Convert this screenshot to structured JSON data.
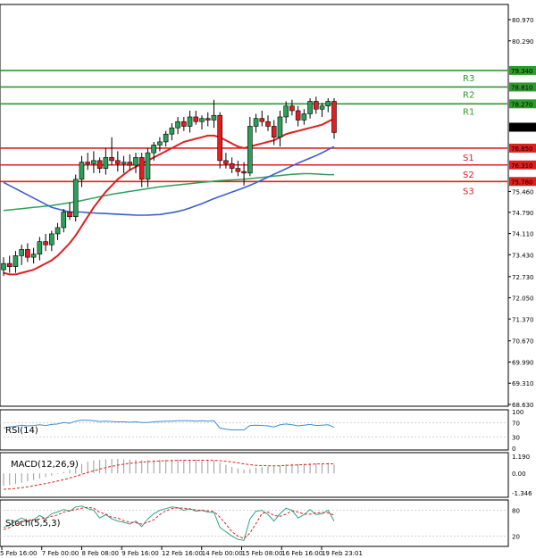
{
  "chart_data": {
    "type": "candlestick",
    "instrument_note": "",
    "price_axis": {
      "ticks": [
        "80.970",
        "80.290",
        "79.340",
        "78.810",
        "78.270",
        "77.520",
        "76.850",
        "76.310",
        "75.780",
        "75.460",
        "74.790",
        "74.110",
        "73.430",
        "72.730",
        "72.050",
        "71.370",
        "70.670",
        "69.990",
        "69.310",
        "68.630"
      ],
      "range": [
        68.63,
        81.45
      ]
    },
    "time_axis": [
      "5 Feb 16:00",
      "7 Feb 00:00",
      "8 Feb 08:00",
      "9 Feb 16:00",
      "12 Feb 16:00",
      "14 Feb 00:00",
      "15 Feb 08:00",
      "16 Feb 16:00",
      "19 Feb 23:01"
    ],
    "levels": [
      {
        "name": "R3",
        "value": 79.34,
        "value_text": "79.340",
        "color": "#2e9a2e"
      },
      {
        "name": "R2",
        "value": 78.81,
        "value_text": "78.810",
        "color": "#2e9a2e"
      },
      {
        "name": "R1",
        "value": 78.27,
        "value_text": "78.270",
        "color": "#2e9a2e"
      },
      {
        "name": "S1",
        "value": 76.85,
        "value_text": "76.850",
        "color": "#e02020"
      },
      {
        "name": "S2",
        "value": 76.31,
        "value_text": "76.310",
        "color": "#e02020"
      },
      {
        "name": "S3",
        "value": 75.78,
        "value_text": "75.780",
        "color": "#e02020"
      }
    ],
    "current_price": {
      "value": 77.52,
      "text": "77.520"
    },
    "candles": [
      [
        72.95,
        73.35,
        72.75,
        73.15
      ],
      [
        73.15,
        73.4,
        72.85,
        73.05
      ],
      [
        73.05,
        73.55,
        72.85,
        73.4
      ],
      [
        73.4,
        73.75,
        73.1,
        73.6
      ],
      [
        73.6,
        73.8,
        73.2,
        73.35
      ],
      [
        73.35,
        73.65,
        73.15,
        73.45
      ],
      [
        73.45,
        74.0,
        73.25,
        73.85
      ],
      [
        73.85,
        74.1,
        73.55,
        73.75
      ],
      [
        73.75,
        74.2,
        73.55,
        74.1
      ],
      [
        74.1,
        74.45,
        73.9,
        74.3
      ],
      [
        74.3,
        74.9,
        74.15,
        74.8
      ],
      [
        74.8,
        75.1,
        74.55,
        74.65
      ],
      [
        74.65,
        76.0,
        74.5,
        75.85
      ],
      [
        75.85,
        76.6,
        75.6,
        76.4
      ],
      [
        76.4,
        76.7,
        76.15,
        76.35
      ],
      [
        76.35,
        76.75,
        76.05,
        76.45
      ],
      [
        76.45,
        76.55,
        76.05,
        76.2
      ],
      [
        76.2,
        76.85,
        76.0,
        76.55
      ],
      [
        76.55,
        77.2,
        76.3,
        76.45
      ],
      [
        76.45,
        76.75,
        76.1,
        76.35
      ],
      [
        76.35,
        76.6,
        76.05,
        76.4
      ],
      [
        76.4,
        76.65,
        76.15,
        76.3
      ],
      [
        76.3,
        76.7,
        76.05,
        76.55
      ],
      [
        76.55,
        76.7,
        75.6,
        75.85
      ],
      [
        75.85,
        76.85,
        75.6,
        76.7
      ],
      [
        76.7,
        77.05,
        76.45,
        76.95
      ],
      [
        76.95,
        77.2,
        76.75,
        77.05
      ],
      [
        77.05,
        77.4,
        76.9,
        77.3
      ],
      [
        77.3,
        77.65,
        77.1,
        77.5
      ],
      [
        77.5,
        77.85,
        77.3,
        77.7
      ],
      [
        77.7,
        77.85,
        77.4,
        77.55
      ],
      [
        77.55,
        78.05,
        77.35,
        77.85
      ],
      [
        77.85,
        78.05,
        77.6,
        77.7
      ],
      [
        77.7,
        77.9,
        77.45,
        77.8
      ],
      [
        77.8,
        78.0,
        77.55,
        77.75
      ],
      [
        77.75,
        78.4,
        77.5,
        77.9
      ],
      [
        77.9,
        78.0,
        76.2,
        76.45
      ],
      [
        76.45,
        76.7,
        76.2,
        76.35
      ],
      [
        76.35,
        76.55,
        76.05,
        76.2
      ],
      [
        76.2,
        76.45,
        75.95,
        76.1
      ],
      [
        76.1,
        76.4,
        75.65,
        76.05
      ],
      [
        76.05,
        77.85,
        75.95,
        77.55
      ],
      [
        77.55,
        77.95,
        77.35,
        77.8
      ],
      [
        77.8,
        78.05,
        77.55,
        77.7
      ],
      [
        77.7,
        77.9,
        77.4,
        77.55
      ],
      [
        77.55,
        77.75,
        76.95,
        77.2
      ],
      [
        77.2,
        78.05,
        76.9,
        77.85
      ],
      [
        77.85,
        78.35,
        77.65,
        78.2
      ],
      [
        78.2,
        78.4,
        77.9,
        78.05
      ],
      [
        78.05,
        78.2,
        77.55,
        77.75
      ],
      [
        77.75,
        78.1,
        77.6,
        77.95
      ],
      [
        77.95,
        78.45,
        77.8,
        78.35
      ],
      [
        78.35,
        78.5,
        77.95,
        78.1
      ],
      [
        78.1,
        78.3,
        77.85,
        78.2
      ],
      [
        78.2,
        78.45,
        78.0,
        78.35
      ],
      [
        78.35,
        78.45,
        77.15,
        77.35
      ]
    ],
    "ma_fast": [
      72.85,
      72.8,
      72.8,
      72.85,
      72.9,
      72.95,
      73.05,
      73.15,
      73.25,
      73.4,
      73.6,
      73.8,
      74.05,
      74.35,
      74.65,
      74.95,
      75.2,
      75.45,
      75.65,
      75.85,
      76.0,
      76.15,
      76.25,
      76.35,
      76.45,
      76.55,
      76.65,
      76.75,
      76.85,
      76.95,
      77.05,
      77.1,
      77.15,
      77.2,
      77.25,
      77.25,
      77.2,
      77.1,
      77.0,
      76.9,
      76.85,
      76.9,
      76.95,
      77.0,
      77.05,
      77.1,
      77.2,
      77.3,
      77.35,
      77.4,
      77.45,
      77.5,
      77.55,
      77.6,
      77.7,
      77.8
    ],
    "ma_mid": [
      75.75,
      75.65,
      75.55,
      75.45,
      75.35,
      75.25,
      75.15,
      75.05,
      74.95,
      74.9,
      74.85,
      74.8,
      74.8,
      74.8,
      74.78,
      74.77,
      74.76,
      74.75,
      74.74,
      74.73,
      74.72,
      74.71,
      74.7,
      74.7,
      74.7,
      74.71,
      74.72,
      74.75,
      74.78,
      74.82,
      74.87,
      74.93,
      75.0,
      75.07,
      75.15,
      75.23,
      75.3,
      75.37,
      75.44,
      75.51,
      75.58,
      75.66,
      75.74,
      75.83,
      75.92,
      76.01,
      76.1,
      76.19,
      76.28,
      76.37,
      76.45,
      76.53,
      76.61,
      76.7,
      76.8,
      76.9
    ],
    "ma_slow": [
      74.85,
      74.87,
      74.89,
      74.91,
      74.93,
      74.95,
      74.97,
      74.99,
      75.01,
      75.04,
      75.07,
      75.1,
      75.13,
      75.17,
      75.21,
      75.25,
      75.29,
      75.33,
      75.37,
      75.4,
      75.43,
      75.46,
      75.49,
      75.52,
      75.55,
      75.58,
      75.61,
      75.63,
      75.65,
      75.67,
      75.69,
      75.71,
      75.73,
      75.75,
      75.77,
      75.79,
      75.81,
      75.82,
      75.83,
      75.84,
      75.85,
      75.87,
      75.89,
      75.91,
      75.93,
      75.95,
      75.97,
      75.99,
      76.01,
      76.02,
      76.03,
      76.03,
      76.02,
      76.01,
      76.0,
      76.0
    ],
    "indicators": {
      "rsi": {
        "label": "RSI(14)",
        "ticks": [
          "100",
          "70",
          "30",
          "0"
        ],
        "values": [
          55,
          58,
          60,
          63,
          61,
          62,
          64,
          62,
          65,
          66,
          70,
          68,
          74,
          76,
          76,
          75,
          73,
          74,
          73,
          72,
          72,
          71,
          72,
          70,
          70,
          72,
          73,
          74,
          74,
          75,
          75,
          75,
          74,
          75,
          74,
          75,
          55,
          52,
          50,
          50,
          50,
          62,
          63,
          62,
          61,
          58,
          64,
          66,
          64,
          61,
          63,
          65,
          62,
          63,
          64,
          57
        ]
      },
      "macd": {
        "label": "MACD(12,26,9)",
        "ticks": [
          "1.190",
          "0.00",
          "-1.346"
        ],
        "histogram": [
          -0.85,
          -0.8,
          -0.72,
          -0.65,
          -0.55,
          -0.45,
          -0.35,
          -0.25,
          -0.15,
          -0.05,
          0.1,
          0.25,
          0.45,
          0.65,
          0.8,
          0.9,
          0.95,
          0.98,
          1.0,
          1.0,
          0.98,
          0.96,
          0.95,
          0.92,
          0.92,
          0.92,
          0.93,
          0.94,
          0.95,
          0.96,
          0.95,
          0.95,
          0.94,
          0.93,
          0.92,
          0.9,
          0.75,
          0.6,
          0.45,
          0.35,
          0.25,
          0.3,
          0.4,
          0.45,
          0.48,
          0.48,
          0.55,
          0.62,
          0.66,
          0.66,
          0.67,
          0.7,
          0.7,
          0.7,
          0.72,
          0.6
        ],
        "signal": [
          -1.1,
          -1.08,
          -1.04,
          -0.99,
          -0.93,
          -0.86,
          -0.78,
          -0.7,
          -0.62,
          -0.53,
          -0.43,
          -0.32,
          -0.2,
          -0.07,
          0.06,
          0.18,
          0.3,
          0.4,
          0.49,
          0.57,
          0.64,
          0.7,
          0.74,
          0.78,
          0.81,
          0.84,
          0.86,
          0.88,
          0.89,
          0.9,
          0.91,
          0.91,
          0.91,
          0.91,
          0.91,
          0.9,
          0.88,
          0.84,
          0.79,
          0.73,
          0.66,
          0.6,
          0.56,
          0.54,
          0.53,
          0.52,
          0.53,
          0.55,
          0.57,
          0.59,
          0.61,
          0.63,
          0.65,
          0.66,
          0.67,
          0.66
        ]
      },
      "stoch": {
        "label": "Stoch(5,5,3)",
        "ticks": [
          "80",
          "20"
        ],
        "main": [
          40,
          45,
          55,
          62,
          55,
          58,
          68,
          60,
          72,
          76,
          82,
          78,
          88,
          90,
          84,
          80,
          62,
          70,
          60,
          55,
          52,
          48,
          55,
          42,
          60,
          72,
          80,
          84,
          88,
          86,
          80,
          84,
          78,
          80,
          76,
          75,
          40,
          30,
          20,
          12,
          10,
          60,
          78,
          80,
          70,
          55,
          72,
          85,
          80,
          62,
          70,
          82,
          70,
          72,
          80,
          55
        ],
        "signal": [
          35,
          40,
          47,
          54,
          57,
          58,
          60,
          62,
          66,
          69,
          76,
          79,
          82,
          85,
          87,
          85,
          75,
          71,
          64,
          62,
          56,
          52,
          51,
          48,
          52,
          58,
          70,
          79,
          84,
          86,
          85,
          83,
          81,
          80,
          79,
          77,
          64,
          48,
          30,
          20,
          14,
          27,
          49,
          73,
          76,
          68,
          66,
          71,
          79,
          76,
          71,
          71,
          74,
          75,
          74,
          69
        ]
      }
    }
  }
}
